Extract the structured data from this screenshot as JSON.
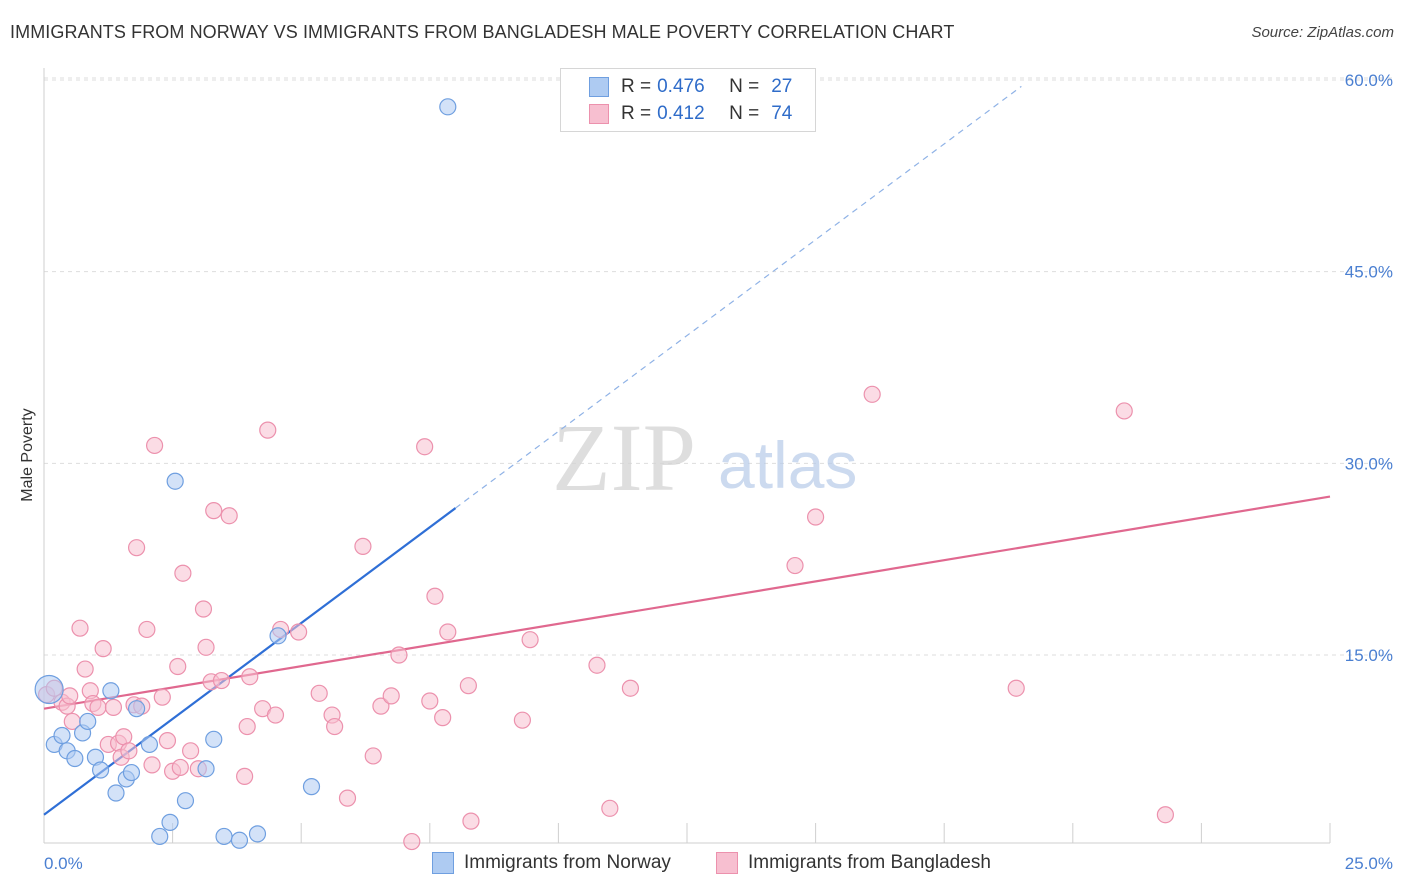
{
  "title": "IMMIGRANTS FROM NORWAY VS IMMIGRANTS FROM BANGLADESH MALE POVERTY CORRELATION CHART",
  "source": "Source: ZipAtlas.com",
  "watermark": {
    "zip": "ZIP",
    "atlas": "atlas"
  },
  "legend": {
    "norway": {
      "r_key": "R =",
      "r": "0.476",
      "n_key": "N =",
      "n": "27"
    },
    "bangladesh": {
      "r_key": "R =",
      "r": "0.412",
      "n_key": "N =",
      "n": "74"
    }
  },
  "bottom_legend": {
    "norway": "Immigrants from Norway",
    "bangladesh": "Immigrants from Bangladesh"
  },
  "colors": {
    "norway_fill": "#aecbf2",
    "norway_stroke": "#6f9fe0",
    "norway_line": "#2f6fd6",
    "bangladesh_fill": "#f7bfd0",
    "bangladesh_stroke": "#ec91ad",
    "bangladesh_line": "#e0688f",
    "axis_text": "#4a7fd1",
    "grid": "#dddddd"
  },
  "chart_data": {
    "type": "scatter",
    "title": "IMMIGRANTS FROM NORWAY VS IMMIGRANTS FROM BANGLADESH MALE POVERTY CORRELATION CHART",
    "xlabel": "",
    "ylabel": "Male Poverty",
    "xlim": [
      0,
      25
    ],
    "ylim": [
      0,
      62
    ],
    "x_tick_labels": [
      "0.0%",
      "25.0%"
    ],
    "y_ticks": [
      15,
      30,
      45,
      60
    ],
    "y_tick_labels": [
      "15.0%",
      "30.0%",
      "45.0%",
      "60.0%"
    ],
    "grid": true,
    "series": [
      {
        "name": "Immigrants from Norway",
        "R": 0.476,
        "N": 27,
        "trend": {
          "x0": 0,
          "y0": 2.5,
          "x1": 8.0,
          "y1": 26.5,
          "dashed_to_x": 19.0,
          "dashed_to_y": 59.5
        },
        "points": [
          [
            0.1,
            12.3
          ],
          [
            0.2,
            8.0
          ],
          [
            0.35,
            8.7
          ],
          [
            0.45,
            7.5
          ],
          [
            0.6,
            6.9
          ],
          [
            0.75,
            8.9
          ],
          [
            0.85,
            9.8
          ],
          [
            1.0,
            7.0
          ],
          [
            1.1,
            6.0
          ],
          [
            1.3,
            12.2
          ],
          [
            1.4,
            4.2
          ],
          [
            1.6,
            5.3
          ],
          [
            1.7,
            5.8
          ],
          [
            1.8,
            10.8
          ],
          [
            2.05,
            8.0
          ],
          [
            2.25,
            0.8
          ],
          [
            2.45,
            1.9
          ],
          [
            2.55,
            28.6
          ],
          [
            2.75,
            3.6
          ],
          [
            3.15,
            6.1
          ],
          [
            3.3,
            8.4
          ],
          [
            3.5,
            0.8
          ],
          [
            3.8,
            0.5
          ],
          [
            4.15,
            1.0
          ],
          [
            4.55,
            16.5
          ],
          [
            5.2,
            4.7
          ],
          [
            7.85,
            57.9
          ]
        ]
      },
      {
        "name": "Immigrants from Bangladesh",
        "R": 0.412,
        "N": 74,
        "trend": {
          "x0": 0,
          "y0": 10.8,
          "x1": 25.0,
          "y1": 27.4
        },
        "points": [
          [
            0.05,
            11.9
          ],
          [
            0.2,
            12.4
          ],
          [
            0.35,
            11.3
          ],
          [
            0.45,
            11.0
          ],
          [
            0.5,
            11.8
          ],
          [
            0.55,
            9.8
          ],
          [
            0.7,
            17.1
          ],
          [
            0.8,
            13.9
          ],
          [
            0.9,
            12.2
          ],
          [
            0.95,
            11.2
          ],
          [
            1.05,
            10.9
          ],
          [
            1.15,
            15.5
          ],
          [
            1.25,
            8.0
          ],
          [
            1.35,
            10.9
          ],
          [
            1.45,
            8.1
          ],
          [
            1.5,
            7.0
          ],
          [
            1.55,
            8.6
          ],
          [
            1.65,
            7.5
          ],
          [
            1.75,
            11.1
          ],
          [
            1.8,
            23.4
          ],
          [
            1.9,
            11.0
          ],
          [
            2.0,
            17.0
          ],
          [
            2.1,
            6.4
          ],
          [
            2.15,
            31.4
          ],
          [
            2.3,
            11.7
          ],
          [
            2.4,
            8.3
          ],
          [
            2.5,
            5.9
          ],
          [
            2.6,
            14.1
          ],
          [
            2.65,
            6.2
          ],
          [
            2.7,
            21.4
          ],
          [
            2.85,
            7.5
          ],
          [
            3.0,
            6.1
          ],
          [
            3.1,
            18.6
          ],
          [
            3.15,
            15.6
          ],
          [
            3.25,
            12.9
          ],
          [
            3.3,
            26.3
          ],
          [
            3.45,
            13.0
          ],
          [
            3.6,
            25.9
          ],
          [
            3.9,
            5.5
          ],
          [
            3.95,
            9.4
          ],
          [
            4.0,
            13.3
          ],
          [
            4.25,
            10.8
          ],
          [
            4.35,
            32.6
          ],
          [
            4.5,
            10.3
          ],
          [
            4.6,
            17.0
          ],
          [
            4.95,
            16.8
          ],
          [
            5.35,
            12.0
          ],
          [
            5.6,
            10.3
          ],
          [
            5.65,
            9.4
          ],
          [
            5.9,
            3.8
          ],
          [
            6.2,
            23.5
          ],
          [
            6.4,
            7.1
          ],
          [
            6.55,
            11.0
          ],
          [
            6.75,
            11.8
          ],
          [
            6.9,
            15.0
          ],
          [
            7.15,
            0.4
          ],
          [
            7.4,
            31.3
          ],
          [
            7.5,
            11.4
          ],
          [
            7.6,
            19.6
          ],
          [
            7.75,
            10.1
          ],
          [
            7.85,
            16.8
          ],
          [
            8.25,
            12.6
          ],
          [
            8.3,
            2.0
          ],
          [
            9.3,
            9.9
          ],
          [
            9.45,
            16.2
          ],
          [
            10.75,
            14.2
          ],
          [
            11.0,
            3.0
          ],
          [
            11.4,
            12.4
          ],
          [
            14.6,
            22.0
          ],
          [
            15.0,
            25.8
          ],
          [
            16.1,
            35.4
          ],
          [
            18.9,
            12.4
          ],
          [
            21.0,
            34.1
          ],
          [
            21.8,
            2.5
          ]
        ]
      }
    ]
  }
}
